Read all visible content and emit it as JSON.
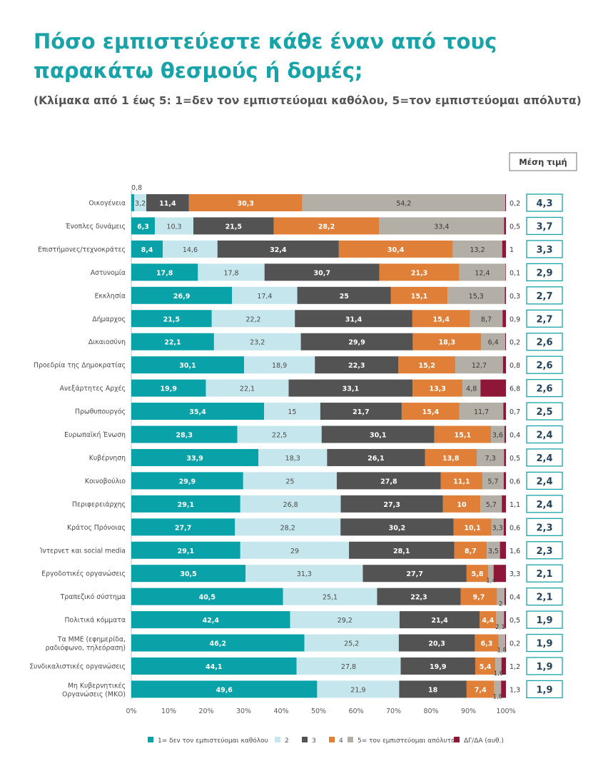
{
  "title": "Πόσο εμπιστεύεστε κάθε έναν από τους παρακάτω θεσμούς ή δομές;",
  "subtitle": "(Κλίμακα από 1 έως 5: 1=δεν τον εμπιστεύομαι καθόλου, 5=τον εμπιστεύομαι απόλυτα)",
  "colors": {
    "s1": "#0aa2a9",
    "s2": "#c5e6ec",
    "s3": "#535353",
    "s4": "#e07f38",
    "s5": "#b3aea6",
    "s6": "#8e1638",
    "accent": "#17a3a8"
  },
  "chart_data": {
    "type": "bar",
    "orientation": "horizontal",
    "stacked": true,
    "categories": [
      "Οικογένεια",
      "Ένοπλες δυνάμεις",
      "Επιστήμονες/τεχνοκράτες",
      "Αστυνομία",
      "Εκκλησία",
      "Δήμαρχος",
      "Δικαιοσύνη",
      "Προεδρία της Δημοκρατίας",
      "Ανεξάρτητες Αρχές",
      "Πρωθυπουργός",
      "Ευρωπαϊκή Ένωση",
      "Κυβέρνηση",
      "Κοινοβούλιο",
      "Περιφερειάρχης",
      "Κράτος Πρόνοιας",
      "Ίντερνετ και social media",
      "Εργοδοτικές οργανώσεις",
      "Τραπεζικό σύστημα",
      "Πολιτικά κόμματα",
      "Τα ΜΜΕ (εφημερίδα, ραδιόφωνο, τηλεόραση)",
      "Συνδικαλιστικές οργανώσεις",
      "Μη Κυβερνητικές Οργανώσεις (ΜΚΟ)"
    ],
    "series": [
      {
        "name": "1= δεν τον εμπιστεύομαι καθόλου",
        "values": [
          0.8,
          6.3,
          8.4,
          17.8,
          26.9,
          21.5,
          22.1,
          30.1,
          19.9,
          35.4,
          28.3,
          33.9,
          29.9,
          29.1,
          27.7,
          29.1,
          30.5,
          40.5,
          42.4,
          46.2,
          44.1,
          49.6
        ]
      },
      {
        "name": "2",
        "values": [
          3.2,
          10.3,
          14.6,
          17.8,
          17.4,
          22.2,
          23.2,
          18.9,
          22.1,
          15,
          22.5,
          18.3,
          25,
          26.8,
          28.2,
          29,
          31.3,
          25.1,
          29.2,
          25.2,
          27.8,
          21.9
        ]
      },
      {
        "name": "3",
        "values": [
          11.4,
          21.5,
          32.4,
          30.7,
          25,
          31.4,
          29.9,
          22.3,
          33.1,
          21.7,
          30.1,
          26.1,
          27.8,
          27.3,
          30.2,
          28.1,
          27.7,
          22.3,
          21.4,
          20.3,
          19.9,
          18
        ]
      },
      {
        "name": "4",
        "values": [
          30.3,
          28.2,
          30.4,
          21.3,
          15.1,
          15.4,
          18.3,
          15.2,
          13.3,
          15.4,
          15.1,
          13.8,
          11.1,
          10,
          10.1,
          8.7,
          5.8,
          9.7,
          4.4,
          6.3,
          5.4,
          7.4
        ]
      },
      {
        "name": "5= τον εμπιστεύομαι απόλυτα",
        "values": [
          54.2,
          33.4,
          13.2,
          12.4,
          15.3,
          8.7,
          6.4,
          12.7,
          4.8,
          11.7,
          3.6,
          7.3,
          5.7,
          5.7,
          3.3,
          3.5,
          1.4,
          2,
          2.1,
          1.8,
          1.6,
          1.8
        ]
      },
      {
        "name": "ΔΓ/ΔΑ (αυθ.)",
        "values": [
          0.2,
          0.5,
          1,
          0.1,
          0.3,
          0.9,
          0.2,
          0.8,
          6.8,
          0.7,
          0.4,
          0.5,
          0.6,
          1.1,
          0.6,
          1.6,
          3.3,
          0.4,
          0.5,
          0.2,
          1.2,
          1.3
        ]
      }
    ],
    "mean_header": "Μέση τιμή",
    "means": [
      "4,3",
      "3,7",
      "3,3",
      "2,9",
      "2,7",
      "2,7",
      "2,6",
      "2,6",
      "2,6",
      "2,5",
      "2,4",
      "2,4",
      "2,4",
      "2,4",
      "2,3",
      "2,3",
      "2,1",
      "2,1",
      "1,9",
      "1,9",
      "1,9",
      "1,9"
    ],
    "x_ticks": [
      "0%",
      "10%",
      "20%",
      "30%",
      "40%",
      "50%",
      "60%",
      "70%",
      "80%",
      "90%",
      "100%"
    ],
    "xlim": [
      0,
      100
    ],
    "legend_position": "bottom"
  }
}
